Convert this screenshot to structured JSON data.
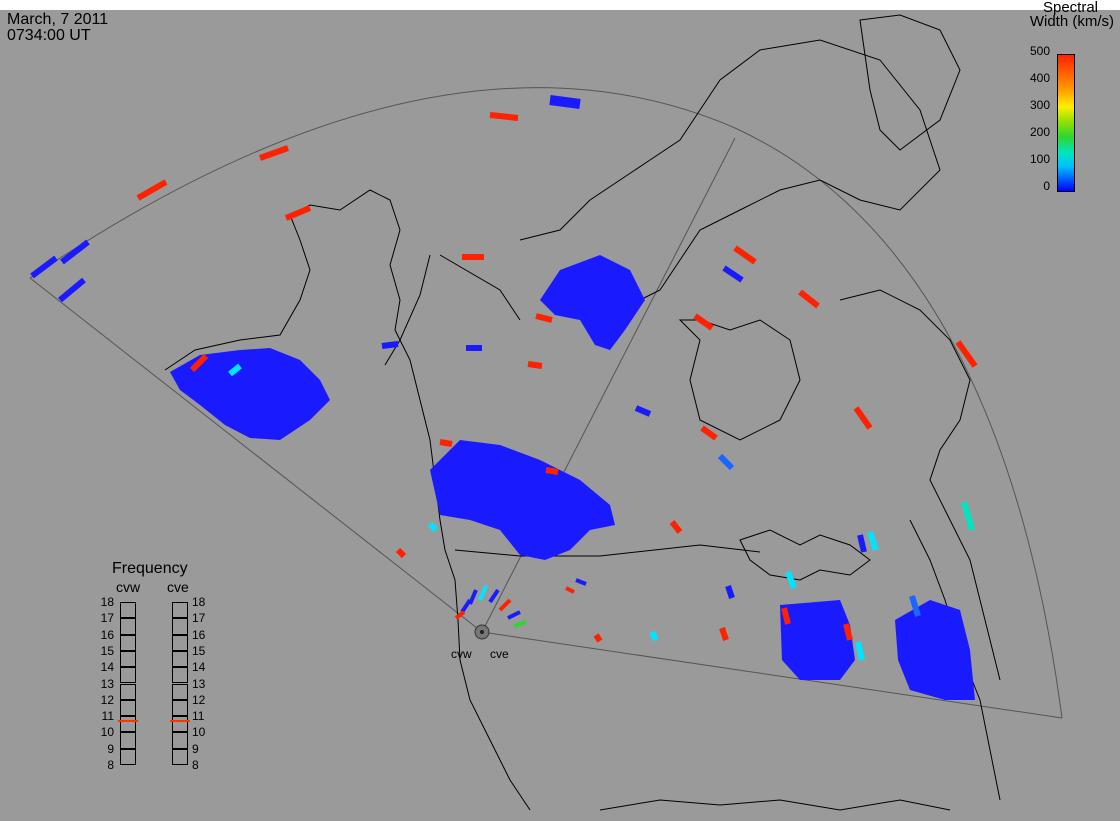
{
  "header": {
    "date": "March, 7 2011",
    "time": "0734:00 UT"
  },
  "color_scale": {
    "title_line1": "Spectral",
    "title_line2": "Width (km/s)",
    "ticks": [
      "500",
      "400",
      "300",
      "200",
      "100",
      "0"
    ],
    "colors": {
      "low": "#0000ff",
      "mid_low": "#00e5c0",
      "mid": "#2fd52f",
      "mid_high": "#ffee00",
      "high": "#ff2200"
    }
  },
  "frequency_panel": {
    "title": "Frequency",
    "radars": [
      "cvw",
      "cve"
    ],
    "levels": [
      "18",
      "17",
      "16",
      "15",
      "14",
      "13",
      "12",
      "11",
      "10",
      "9",
      "8"
    ],
    "current_marker_level": 10.8,
    "marker_color": "#ff3300"
  },
  "radar_sites": {
    "west_label": "cvw",
    "east_label": "cve"
  }
}
